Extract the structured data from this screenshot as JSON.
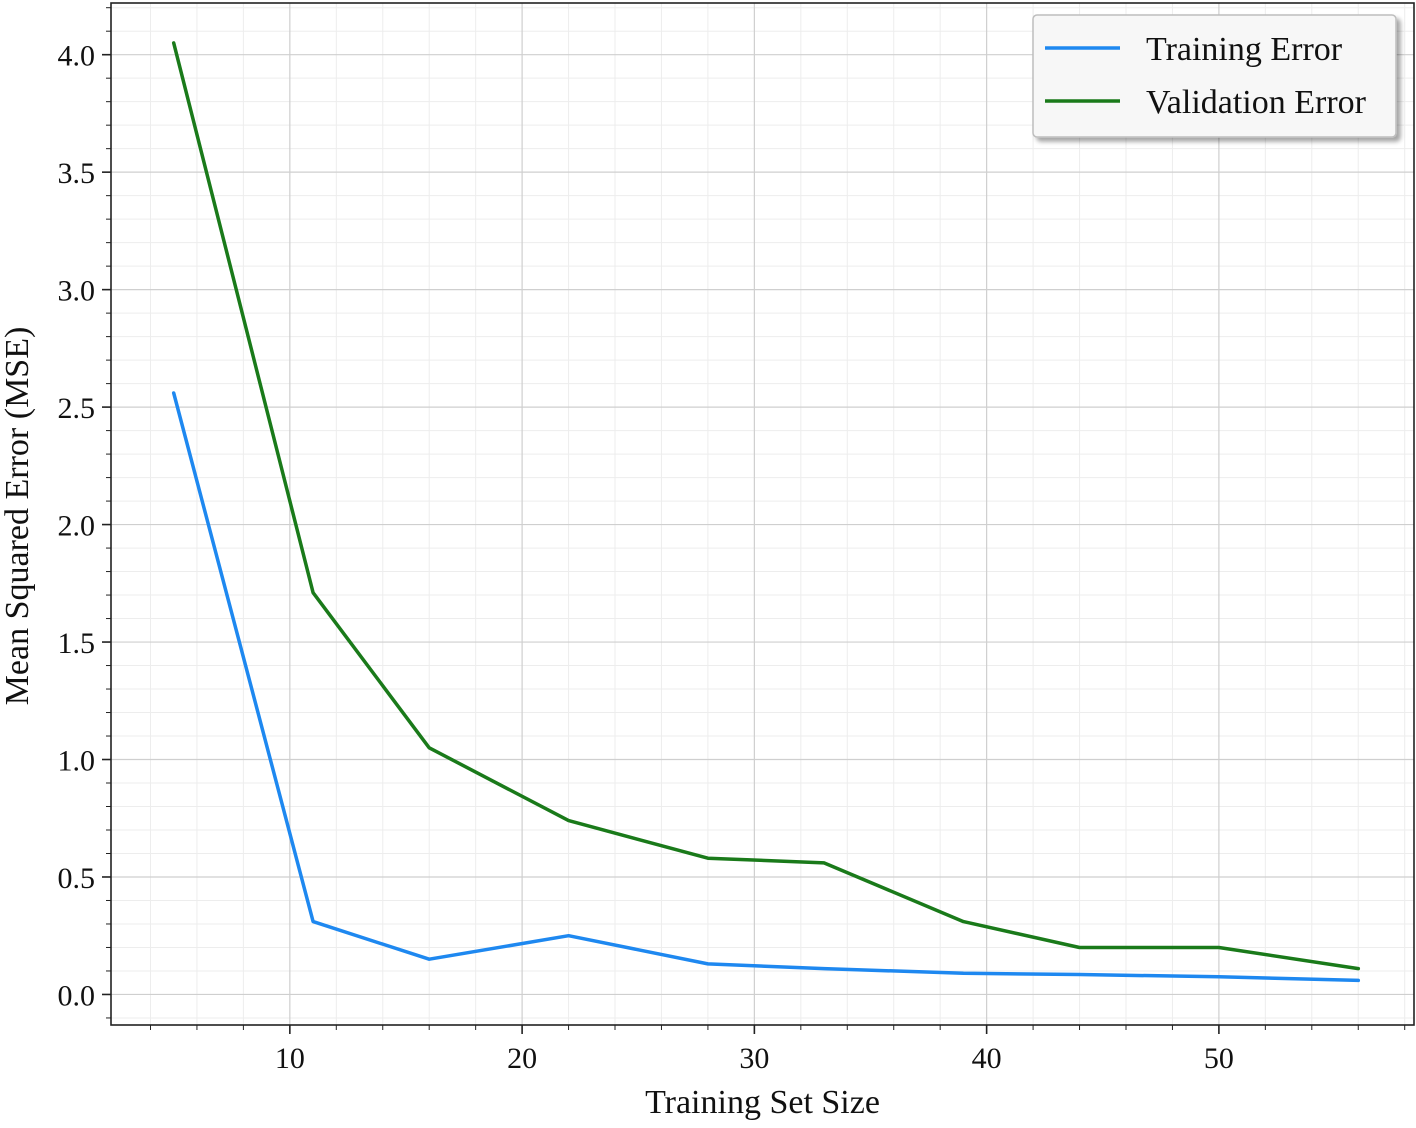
{
  "chart_data": {
    "type": "line",
    "title": "",
    "xlabel": "Training Set Size",
    "ylabel": "Mean Squared Error (MSE)",
    "xlim": [
      2.3,
      58.4
    ],
    "ylim": [
      -0.13,
      4.22
    ],
    "xticks": [
      10,
      20,
      30,
      40,
      50
    ],
    "xtick_labels": [
      "10",
      "20",
      "30",
      "40",
      "50"
    ],
    "yticks": [
      0.0,
      0.5,
      1.0,
      1.5,
      2.0,
      2.5,
      3.0,
      3.5,
      4.0
    ],
    "ytick_labels": [
      "0.0",
      "0.5",
      "1.0",
      "1.5",
      "2.0",
      "2.5",
      "3.0",
      "3.5",
      "4.0"
    ],
    "x_minor_step": 2,
    "y_minor_step": 0.1,
    "grid": true,
    "legend_position": "top-right",
    "x": [
      5,
      11,
      16,
      22,
      28,
      33,
      39,
      44,
      50,
      56
    ],
    "series": [
      {
        "name": "Training Error",
        "color": "#1E88F0",
        "values": [
          2.56,
          0.31,
          0.15,
          0.25,
          0.13,
          0.11,
          0.09,
          0.085,
          0.075,
          0.06
        ]
      },
      {
        "name": "Validation Error",
        "color": "#1A7A1A",
        "values": [
          4.05,
          1.71,
          1.05,
          0.74,
          0.58,
          0.56,
          0.31,
          0.2,
          0.2,
          0.11
        ]
      }
    ]
  }
}
